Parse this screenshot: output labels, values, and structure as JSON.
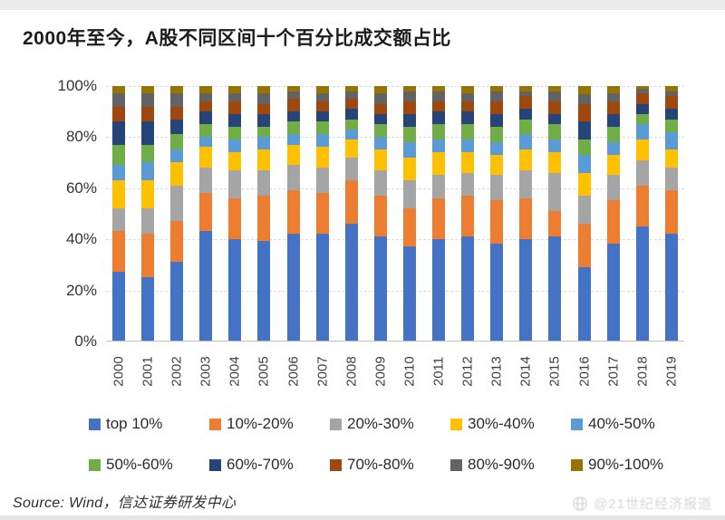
{
  "page": {
    "title": "2000年至今，A股不同区间十个百分比成交额占比",
    "source_text": "Source: Wind，信达证券研发中心",
    "watermark_text": "@21世纪经济报道"
  },
  "chart_data": {
    "type": "bar",
    "stacked": true,
    "title": "2000年至今，A股不同区间十个百分比成交额占比",
    "xlabel": "",
    "ylabel": "",
    "ylim": [
      0,
      100
    ],
    "y_ticks": [
      "0%",
      "20%",
      "40%",
      "60%",
      "80%",
      "100%"
    ],
    "grid": true,
    "legend_position": "bottom",
    "unit": "percent of A-share trading value",
    "categories": [
      "2000",
      "2001",
      "2002",
      "2003",
      "2004",
      "2005",
      "2006",
      "2007",
      "2008",
      "2009",
      "2010",
      "2011",
      "2012",
      "2013",
      "2014",
      "2015",
      "2016",
      "2017",
      "2018",
      "2019"
    ],
    "series": [
      {
        "name": "top 10%",
        "color": "#4472C4",
        "values": [
          27,
          25,
          31,
          43,
          40,
          39,
          42,
          42,
          46,
          41,
          37,
          40,
          41,
          38,
          40,
          41,
          29,
          38,
          45,
          42
        ]
      },
      {
        "name": "10%-20%",
        "color": "#ED7D31",
        "values": [
          16,
          17,
          16,
          15,
          16,
          18,
          17,
          16,
          17,
          16,
          15,
          16,
          16,
          17,
          16,
          10,
          17,
          17,
          16,
          17
        ]
      },
      {
        "name": "20%-30%",
        "color": "#A5A5A5",
        "values": [
          9,
          10,
          14,
          10,
          11,
          10,
          10,
          10,
          9,
          10,
          11,
          9,
          9,
          10,
          11,
          15,
          11,
          10,
          10,
          9
        ]
      },
      {
        "name": "30%-40%",
        "color": "#FFC000",
        "values": [
          11,
          11,
          9,
          8,
          7,
          8,
          8,
          8,
          7,
          8,
          9,
          9,
          8,
          8,
          8,
          8,
          9,
          8,
          8,
          7
        ]
      },
      {
        "name": "40%-50%",
        "color": "#5B9BD5",
        "values": [
          6,
          7,
          5,
          4,
          5,
          5,
          4,
          5,
          4,
          5,
          6,
          5,
          5,
          5,
          6,
          5,
          7,
          5,
          6,
          7
        ]
      },
      {
        "name": "50%-60%",
        "color": "#70AD47",
        "values": [
          8,
          7,
          6,
          5,
          5,
          4,
          5,
          5,
          4,
          5,
          6,
          6,
          6,
          6,
          6,
          6,
          6,
          6,
          4,
          5
        ]
      },
      {
        "name": "60%-70%",
        "color": "#264478",
        "values": [
          9,
          9,
          6,
          5,
          5,
          5,
          4,
          4,
          4,
          4,
          5,
          5,
          5,
          5,
          4,
          4,
          7,
          5,
          4,
          4
        ]
      },
      {
        "name": "70%-80%",
        "color": "#9E480E",
        "values": [
          6,
          6,
          5,
          4,
          5,
          4,
          5,
          4,
          4,
          4,
          5,
          4,
          4,
          5,
          5,
          5,
          7,
          5,
          4,
          5
        ]
      },
      {
        "name": "80%-90%",
        "color": "#636363",
        "values": [
          5,
          5,
          5,
          3,
          3,
          4,
          3,
          3,
          3,
          4,
          4,
          4,
          3,
          4,
          2,
          4,
          4,
          3,
          2,
          2
        ]
      },
      {
        "name": "90%-100%",
        "color": "#997300",
        "values": [
          3,
          3,
          3,
          3,
          3,
          3,
          2,
          3,
          2,
          3,
          2,
          2,
          3,
          2,
          2,
          2,
          3,
          3,
          1,
          2
        ]
      }
    ]
  }
}
